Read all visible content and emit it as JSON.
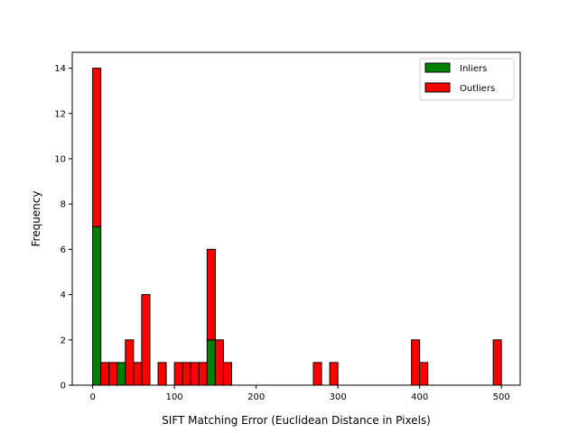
{
  "chart_data": {
    "type": "bar",
    "stacked": true,
    "xlabel": "SIFT Matching Error (Euclidean Distance in Pixels)",
    "ylabel": "Frequency",
    "xlim": [
      -25,
      523
    ],
    "ylim": [
      0,
      14.7
    ],
    "bin_width": 10,
    "bin_starts": [
      0,
      10,
      20,
      30,
      40,
      50,
      60,
      80,
      100,
      110,
      120,
      130,
      140,
      150,
      160,
      270,
      290,
      390,
      400,
      490
    ],
    "x_ticks": [
      0,
      100,
      200,
      300,
      400,
      500
    ],
    "y_ticks": [
      0,
      2,
      4,
      6,
      8,
      10,
      12,
      14
    ],
    "legend_position": "top-right",
    "grid": false,
    "series": [
      {
        "name": "Inliers",
        "color": "#008000",
        "values": [
          7,
          0,
          0,
          1,
          0,
          0,
          0,
          0,
          0,
          0,
          0,
          0,
          2,
          0,
          0,
          0,
          0,
          0,
          0,
          0
        ]
      },
      {
        "name": "Outliers",
        "color": "#ff0000",
        "values": [
          7,
          1,
          1,
          0,
          2,
          1,
          4,
          1,
          1,
          1,
          1,
          1,
          4,
          2,
          1,
          1,
          1,
          2,
          1,
          2
        ]
      }
    ]
  }
}
